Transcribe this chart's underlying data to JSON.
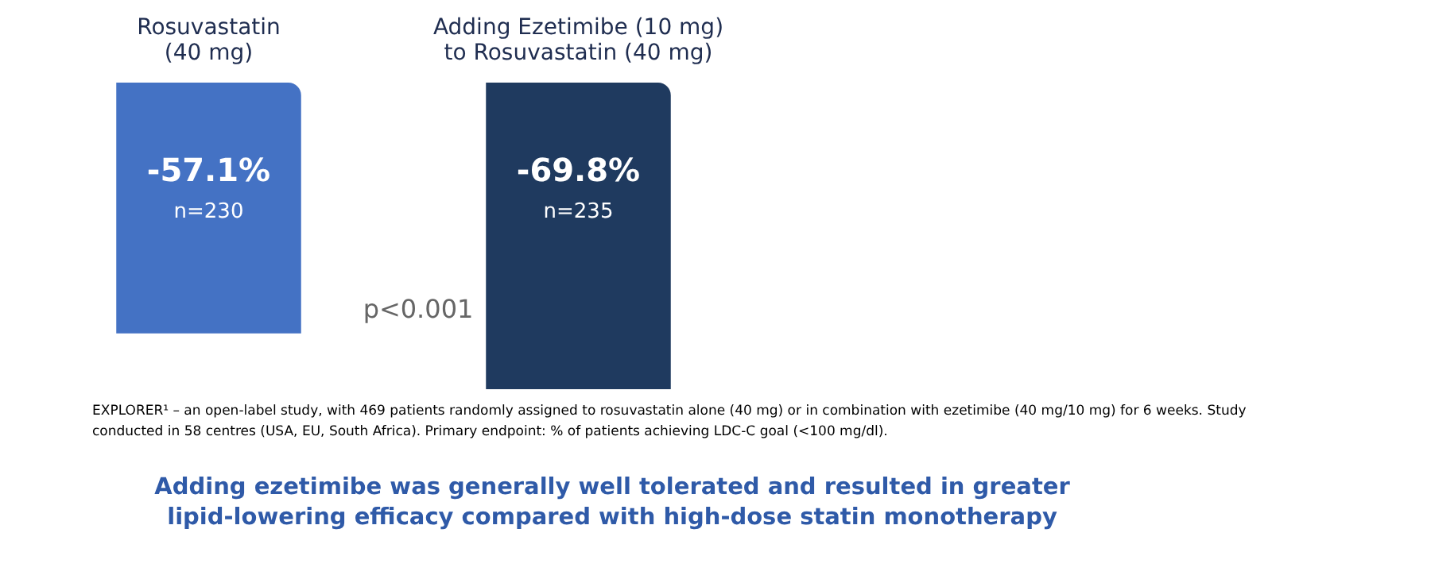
{
  "chart_data": {
    "type": "bar",
    "categories": [
      "Rosuvastatin (40 mg)",
      "Adding Ezetimibe (10 mg) to Rosuvastatin (40 mg)"
    ],
    "values": [
      -57.1,
      -69.8
    ],
    "colors": [
      "#4472c4",
      "#1f3a5f"
    ],
    "value_labels": [
      "-57.1%",
      "-69.8%"
    ],
    "tick_labels": "x",
    "annotations": [
      "n=230",
      "n=235",
      "p<0.001",
      "EXPLORER¹ – an open-label study, with 469 patients randomly assigned to rosuvastatin alone (40 mg) or in combination with ezetimibe (40 mg/10 mg) for 6 weeks. Study conducted in 58 centres (USA, EU, South Africa). Primary endpoint: % of patients achieving LDC-C goal (<100 mg/dl).",
      "Adding ezetimibe was generally well tolerated and resulted in greater lipid-lowering efficacy compared with high-dose statin monotherapy"
    ]
  }
}
